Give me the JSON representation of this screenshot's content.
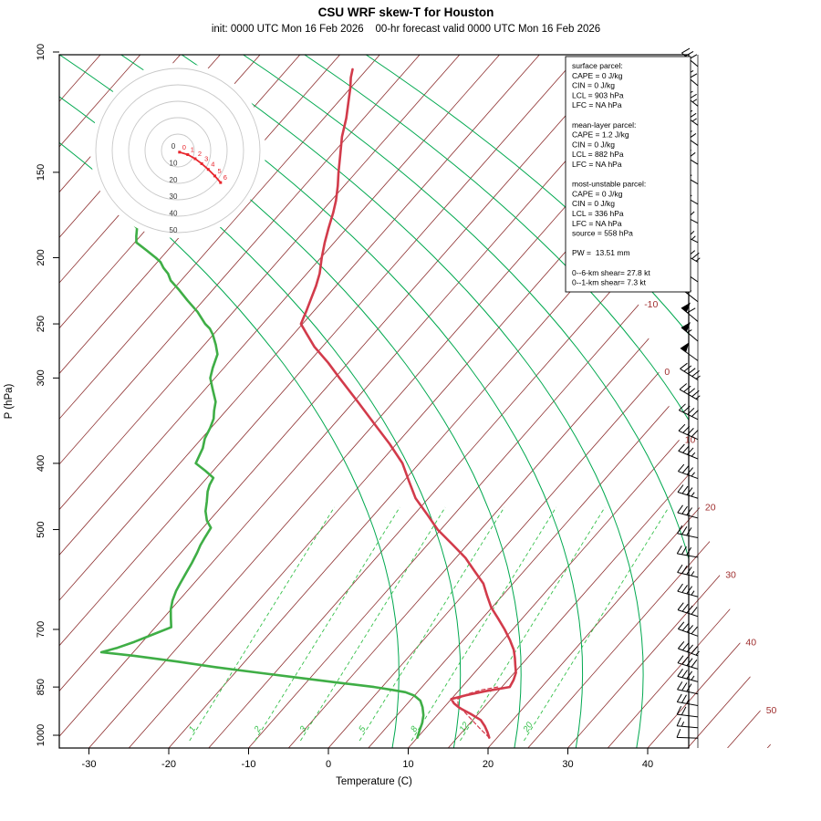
{
  "chart_data": {
    "type": "line",
    "variant": "skew-t-log-p",
    "title": "CSU WRF skew-T for Houston",
    "subtitle": "init: 0000 UTC Mon 16 Feb 2026    00-hr forecast valid 0000 UTC Mon 16 Feb 2026",
    "xlabel": "Temperature (C)",
    "ylabel": "P (hPa)",
    "xlim": [
      -33,
      45
    ],
    "ylim": [
      1046,
      100
    ],
    "grid": "skewed isotherms / moist adiabats / mixing ratio",
    "legend_position": "none",
    "pressure_ticks": [
      100,
      150,
      200,
      250,
      300,
      400,
      500,
      700,
      850,
      1000
    ],
    "temp_ticks": [
      -30,
      -20,
      -10,
      0,
      10,
      20,
      30,
      40
    ],
    "isotherm_step": 5,
    "isotherm_labels": [
      -10,
      0,
      10,
      20,
      30,
      40,
      50
    ],
    "mixing_ratio": {
      "values": [
        1,
        2,
        3,
        5,
        8,
        12,
        20
      ],
      "bottom_temps": [
        -18.2,
        -10.0,
        -4.3,
        3.1,
        9.6,
        15.7,
        23.7
      ]
    },
    "moist_adiabats_bottom_temps": [
      8,
      15.7,
      23.3,
      31,
      38.6,
      46.3,
      54,
      61.7
    ],
    "temperature_profile": [
      [
        1008,
        19
      ],
      [
        990,
        18.2
      ],
      [
        970,
        17.2
      ],
      [
        950,
        16
      ],
      [
        930,
        14
      ],
      [
        912,
        12
      ],
      [
        898,
        10.8
      ],
      [
        885,
        10
      ],
      [
        874,
        11.4
      ],
      [
        862,
        13.4
      ],
      [
        850,
        16
      ],
      [
        830,
        15.7
      ],
      [
        810,
        15.2
      ],
      [
        790,
        14.3
      ],
      [
        770,
        13.4
      ],
      [
        750,
        12.4
      ],
      [
        725,
        10.8
      ],
      [
        700,
        9
      ],
      [
        675,
        7
      ],
      [
        650,
        4.9
      ],
      [
        625,
        3.1
      ],
      [
        600,
        1.3
      ],
      [
        575,
        -1.2
      ],
      [
        550,
        -3.8
      ],
      [
        525,
        -7
      ],
      [
        500,
        -10.4
      ],
      [
        475,
        -13.4
      ],
      [
        450,
        -16.6
      ],
      [
        425,
        -19.3
      ],
      [
        400,
        -22.1
      ],
      [
        375,
        -25.8
      ],
      [
        350,
        -30
      ],
      [
        325,
        -34.5
      ],
      [
        300,
        -39.4
      ],
      [
        285,
        -42.5
      ],
      [
        270,
        -46
      ],
      [
        258,
        -48.5
      ],
      [
        250,
        -50.2
      ],
      [
        240,
        -50.9
      ],
      [
        231,
        -51.6
      ],
      [
        220,
        -52.5
      ],
      [
        211,
        -53.4
      ],
      [
        200,
        -54.9
      ],
      [
        190,
        -56.2
      ],
      [
        181,
        -57.3
      ],
      [
        172,
        -58.4
      ],
      [
        165,
        -59.4
      ],
      [
        157,
        -60.8
      ],
      [
        150,
        -62.2
      ],
      [
        141,
        -64
      ],
      [
        133,
        -65.7
      ],
      [
        125,
        -67.2
      ],
      [
        118,
        -68.8
      ],
      [
        113,
        -70
      ],
      [
        109,
        -71.1
      ],
      [
        106,
        -71.8
      ]
    ],
    "dewpoint_profile": [
      [
        1008,
        10
      ],
      [
        985,
        9.5
      ],
      [
        960,
        9
      ],
      [
        935,
        8.3
      ],
      [
        910,
        7.3
      ],
      [
        890,
        6.3
      ],
      [
        875,
        5
      ],
      [
        865,
        3.5
      ],
      [
        858,
        1.5
      ],
      [
        850,
        -1
      ],
      [
        840,
        -5
      ],
      [
        825,
        -11
      ],
      [
        810,
        -17
      ],
      [
        795,
        -23
      ],
      [
        780,
        -28.5
      ],
      [
        765,
        -34.5
      ],
      [
        756,
        -39
      ],
      [
        745,
        -37.5
      ],
      [
        730,
        -36
      ],
      [
        712,
        -34.5
      ],
      [
        695,
        -33
      ],
      [
        675,
        -34
      ],
      [
        655,
        -35
      ],
      [
        635,
        -35.8
      ],
      [
        615,
        -36.4
      ],
      [
        600,
        -36.7
      ],
      [
        580,
        -37.1
      ],
      [
        560,
        -37.5
      ],
      [
        540,
        -38
      ],
      [
        527,
        -38.4
      ],
      [
        513,
        -38.7
      ],
      [
        497,
        -39
      ],
      [
        485,
        -40.3
      ],
      [
        470,
        -41.5
      ],
      [
        455,
        -42.4
      ],
      [
        440,
        -43.4
      ],
      [
        430,
        -43.9
      ],
      [
        420,
        -44.2
      ],
      [
        410,
        -46
      ],
      [
        400,
        -48
      ],
      [
        390,
        -48.4
      ],
      [
        380,
        -48.8
      ],
      [
        368,
        -49.6
      ],
      [
        355,
        -50.1
      ],
      [
        344,
        -50.7
      ],
      [
        335,
        -51.5
      ],
      [
        325,
        -52.3
      ],
      [
        312,
        -54
      ],
      [
        300,
        -55.6
      ],
      [
        290,
        -56.4
      ],
      [
        277,
        -57.3
      ],
      [
        268,
        -58.6
      ],
      [
        259,
        -60.1
      ],
      [
        254,
        -61.1
      ],
      [
        250,
        -62.2
      ],
      [
        240,
        -64.5
      ],
      [
        231,
        -67
      ],
      [
        223,
        -69.2
      ],
      [
        216,
        -71.3
      ],
      [
        211,
        -72.4
      ],
      [
        207,
        -73.6
      ],
      [
        203,
        -74.6
      ],
      [
        200,
        -75.7
      ],
      [
        195,
        -77.7
      ],
      [
        190,
        -79.8
      ],
      [
        186,
        -80.5
      ],
      [
        181,
        -81.3
      ],
      [
        178,
        -82.4
      ],
      [
        176,
        -83.5
      ]
    ],
    "parcel_path": [
      [
        1008,
        19
      ],
      [
        980,
        17
      ],
      [
        950,
        14.9
      ],
      [
        925,
        13.1
      ],
      [
        903,
        11.5
      ],
      [
        885,
        10.8
      ],
      [
        870,
        11.5
      ],
      [
        858,
        12.8
      ],
      [
        850,
        14.5
      ]
    ],
    "hodograph": {
      "rings": [
        10,
        20,
        30,
        40,
        50
      ],
      "ring_labels": [
        "0",
        "10",
        "20",
        "30",
        "40",
        "50"
      ],
      "trace": [
        {
          "km": 0,
          "u": 1,
          "v": -1
        },
        {
          "km": 1,
          "u": 6,
          "v": -2.5
        },
        {
          "km": 2,
          "u": 10.5,
          "v": -5
        },
        {
          "km": 3,
          "u": 14.5,
          "v": -8
        },
        {
          "km": 4,
          "u": 18.5,
          "v": -11.5
        },
        {
          "km": 5,
          "u": 22.5,
          "v": -15.5
        },
        {
          "km": 6,
          "u": 26,
          "v": -19.5
        }
      ]
    },
    "wind_barbs": [
      [
        105,
        30,
        310
      ],
      [
        112,
        30,
        310
      ],
      [
        120,
        35,
        308
      ],
      [
        128,
        35,
        306
      ],
      [
        137,
        30,
        305
      ],
      [
        146,
        30,
        302
      ],
      [
        156,
        25,
        300
      ],
      [
        167,
        25,
        300
      ],
      [
        178,
        30,
        297
      ],
      [
        190,
        35,
        296
      ],
      [
        203,
        45,
        300
      ],
      [
        217,
        50,
        305
      ],
      [
        232,
        55,
        308
      ],
      [
        248,
        60,
        310
      ],
      [
        265,
        55,
        310
      ],
      [
        283,
        50,
        306
      ],
      [
        302,
        45,
        302
      ],
      [
        323,
        45,
        300
      ],
      [
        345,
        40,
        296
      ],
      [
        369,
        40,
        294
      ],
      [
        394,
        35,
        292
      ],
      [
        421,
        35,
        290
      ],
      [
        450,
        35,
        287
      ],
      [
        481,
        30,
        285
      ],
      [
        514,
        30,
        282
      ],
      [
        549,
        30,
        280
      ],
      [
        587,
        35,
        283
      ],
      [
        627,
        35,
        285
      ],
      [
        670,
        40,
        288
      ],
      [
        716,
        40,
        290
      ],
      [
        765,
        45,
        290
      ],
      [
        800,
        40,
        287
      ],
      [
        835,
        35,
        285
      ],
      [
        870,
        30,
        282
      ],
      [
        905,
        25,
        280
      ],
      [
        940,
        20,
        277
      ],
      [
        975,
        15,
        275
      ],
      [
        1010,
        10,
        272
      ]
    ],
    "info_box": {
      "lines": [
        "surface parcel:",
        "CAPE = 0 J/kg",
        "CIN = 0 J/kg",
        "LCL = 903 hPa",
        "LFC = NA hPa",
        "",
        "mean-layer parcel:",
        "CAPE = 1.2 J/kg",
        "CIN = 0 J/kg",
        "LCL = 882 hPa",
        "LFC = NA hPa",
        "",
        "most-unstable parcel:",
        "CAPE = 0 J/kg",
        "CIN = 0 J/kg",
        "LCL = 336 hPa",
        "LFC = NA hPa",
        "source = 558 hPa",
        "",
        "PW =  13.51 mm",
        "",
        "0--6-km shear= 27.8 kt",
        "0--1-km shear= 7.3 kt"
      ]
    },
    "colors": {
      "isotherm": "#8d2f2f",
      "isotherm_label": "#a03030",
      "temp": "#d23b4b",
      "dewpoint": "#3fae46",
      "moist_adiabat": "#00a84f",
      "mixing_ratio": "#35c04a",
      "barb": "#000000",
      "hodo_ring": "#c8c8c8",
      "hodo_trace": "#e8262d",
      "frame": "#000000"
    }
  }
}
